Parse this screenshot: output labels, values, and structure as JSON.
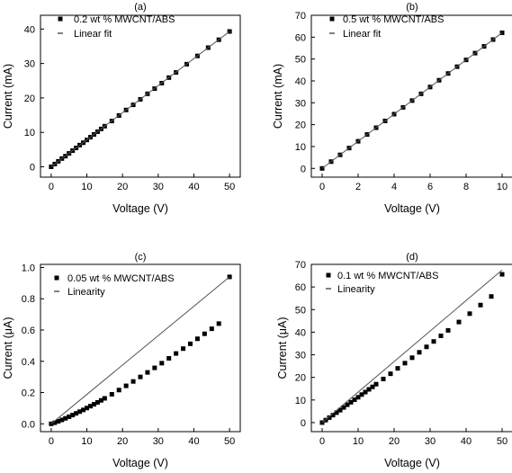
{
  "chart_data": [
    {
      "type": "scatter",
      "panel_label": "(a)",
      "xlabel": "Voltage (V)",
      "ylabel": "Current (mA)",
      "xlim": [
        -3,
        53
      ],
      "ylim": [
        -3,
        44
      ],
      "xticks": [
        0,
        10,
        20,
        30,
        40,
        50
      ],
      "yticks": [
        0,
        10,
        20,
        30,
        40
      ],
      "grid": false,
      "legend_position": "top-left",
      "series": [
        {
          "name": "0.2 wt % MWCNT/ABS",
          "marker": "square",
          "x": [
            0,
            1,
            2,
            3,
            4,
            5,
            6,
            7,
            8,
            9,
            10,
            11,
            12,
            13,
            14,
            15,
            17,
            19,
            21,
            23,
            25,
            27,
            29,
            31,
            33,
            35,
            38,
            41,
            44,
            47,
            50
          ],
          "y": [
            0,
            0.8,
            1.6,
            2.4,
            3.1,
            3.9,
            4.7,
            5.5,
            6.3,
            7.0,
            7.8,
            8.6,
            9.4,
            10.2,
            11.0,
            11.8,
            13.3,
            14.9,
            16.5,
            18.0,
            19.6,
            21.2,
            22.7,
            24.3,
            25.9,
            27.4,
            29.8,
            32.2,
            34.6,
            36.9,
            39.3
          ]
        },
        {
          "name": "Linear fit",
          "style": "line",
          "x": [
            0,
            50
          ],
          "y": [
            0,
            39.3
          ]
        }
      ]
    },
    {
      "type": "scatter",
      "panel_label": "(b)",
      "xlabel": "Voltage (V)",
      "ylabel": "Current (mA)",
      "xlim": [
        -0.6,
        10.6
      ],
      "ylim": [
        -4,
        70
      ],
      "xticks": [
        0,
        2,
        4,
        6,
        8,
        10
      ],
      "yticks": [
        0,
        10,
        20,
        30,
        40,
        50,
        60,
        70
      ],
      "grid": false,
      "legend_position": "top-left",
      "series": [
        {
          "name": "0.5 wt % MWCNT/ABS",
          "marker": "square",
          "x": [
            0,
            0.5,
            1,
            1.5,
            2,
            2.5,
            3,
            3.5,
            4,
            4.5,
            5,
            5.5,
            6,
            6.5,
            7,
            7.5,
            8,
            8.5,
            9,
            9.5,
            10
          ],
          "y": [
            0,
            3.1,
            6.2,
            9.3,
            12.4,
            15.5,
            18.6,
            21.7,
            24.8,
            27.9,
            31.0,
            34.1,
            37.2,
            40.3,
            43.4,
            46.5,
            49.6,
            52.7,
            55.8,
            58.9,
            62.0
          ]
        },
        {
          "name": "Linear fit",
          "style": "line",
          "x": [
            0,
            10
          ],
          "y": [
            0,
            62.0
          ]
        }
      ]
    },
    {
      "type": "scatter",
      "panel_label": "(c)",
      "xlabel": "Voltage (V)",
      "ylabel": "Current (μA)",
      "xlim": [
        -3,
        53
      ],
      "ylim": [
        -0.05,
        1.02
      ],
      "xticks": [
        0,
        10,
        20,
        30,
        40,
        50
      ],
      "yticks": [
        "0.0",
        "0.2",
        "0.4",
        "0.6",
        "0.8",
        "1.0"
      ],
      "ytick_values": [
        0,
        0.2,
        0.4,
        0.6,
        0.8,
        1.0
      ],
      "grid": false,
      "legend_position": "top-left",
      "series": [
        {
          "name": "0.05 wt % MWCNT/ABS",
          "marker": "square",
          "x": [
            0,
            1,
            2,
            3,
            4,
            5,
            6,
            7,
            8,
            9,
            10,
            11,
            12,
            13,
            14,
            15,
            17,
            19,
            21,
            23,
            25,
            27,
            29,
            31,
            33,
            35,
            37,
            39,
            41,
            43,
            45,
            47,
            50
          ],
          "y": [
            0,
            0.007,
            0.016,
            0.025,
            0.035,
            0.045,
            0.056,
            0.067,
            0.078,
            0.089,
            0.101,
            0.113,
            0.125,
            0.137,
            0.15,
            0.163,
            0.189,
            0.216,
            0.243,
            0.271,
            0.3,
            0.329,
            0.358,
            0.388,
            0.419,
            0.45,
            0.481,
            0.512,
            0.544,
            0.576,
            0.608,
            0.641,
            0.94
          ]
        },
        {
          "name": "Linearity",
          "style": "line",
          "x": [
            0,
            50
          ],
          "y": [
            0,
            0.94
          ]
        }
      ]
    },
    {
      "type": "scatter",
      "panel_label": "(d)",
      "xlabel": "Voltage (V)",
      "ylabel": "Current (μA)",
      "xlim": [
        -3,
        53
      ],
      "ylim": [
        -4,
        70
      ],
      "xticks": [
        0,
        10,
        20,
        30,
        40,
        50
      ],
      "yticks": [
        0,
        10,
        20,
        30,
        40,
        50,
        60,
        70
      ],
      "grid": false,
      "legend_position": "top-left",
      "series": [
        {
          "name": "0.1 wt % MWCNT/ABS",
          "marker": "square",
          "x": [
            0,
            1,
            2,
            3,
            4,
            5,
            6,
            7,
            8,
            9,
            10,
            11,
            12,
            13,
            14,
            15,
            17,
            19,
            21,
            23,
            25,
            27,
            29,
            31,
            33,
            35,
            38,
            41,
            44,
            47,
            50
          ],
          "y": [
            0,
            1.1,
            2.2,
            3.3,
            4.4,
            5.5,
            6.7,
            7.9,
            9.0,
            10.1,
            11.2,
            12.4,
            13.5,
            14.7,
            15.8,
            17.0,
            19.3,
            21.6,
            24.0,
            26.3,
            28.7,
            31.1,
            33.5,
            35.9,
            38.4,
            40.8,
            44.5,
            48.2,
            52.0,
            55.8,
            65.6
          ]
        },
        {
          "name": "Linearity",
          "style": "line",
          "x": [
            0,
            50
          ],
          "y": [
            0,
            67.5
          ]
        }
      ]
    }
  ]
}
